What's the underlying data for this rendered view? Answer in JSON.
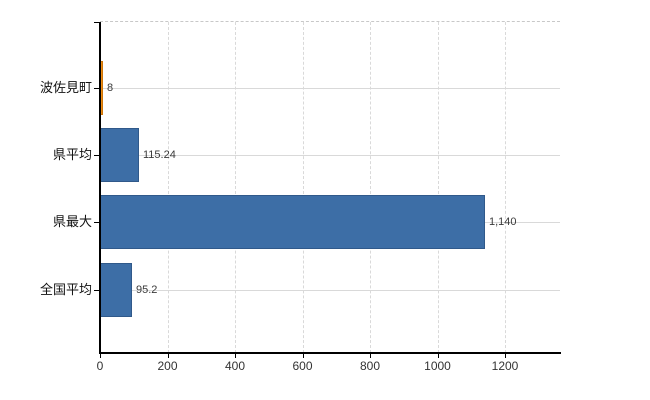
{
  "chart_data": {
    "type": "bar",
    "orientation": "horizontal",
    "title": "",
    "categories": [
      "波佐見町",
      "県平均",
      "県最大",
      "全国平均"
    ],
    "values": [
      8,
      115.24,
      1140,
      95.2
    ],
    "value_labels": [
      "8",
      "115.24",
      "1,140",
      "95.2"
    ],
    "bar_colors": [
      "#f08c12",
      "#3d6ea6",
      "#3d6ea6",
      "#3d6ea6"
    ],
    "bar_border_colors": [
      "#cc7509",
      "#30598a",
      "#30598a",
      "#30598a"
    ],
    "x_tick_labels": [
      "0",
      "200",
      "400",
      "600",
      "800",
      "1000",
      "1200"
    ],
    "x_tick_values": [
      0,
      200,
      400,
      600,
      800,
      1000,
      1200
    ],
    "xlim": [
      0,
      1363
    ],
    "xlabel": "",
    "ylabel": "",
    "grid": true,
    "legend": null,
    "colors": {
      "axis": "#000000",
      "gridline": "#d9d9d9",
      "top_border": "#c8c8c8",
      "tick_text": "#333333",
      "category_text": "#111111",
      "value_text": "#3a3a3a",
      "background": "#ffffff"
    }
  }
}
